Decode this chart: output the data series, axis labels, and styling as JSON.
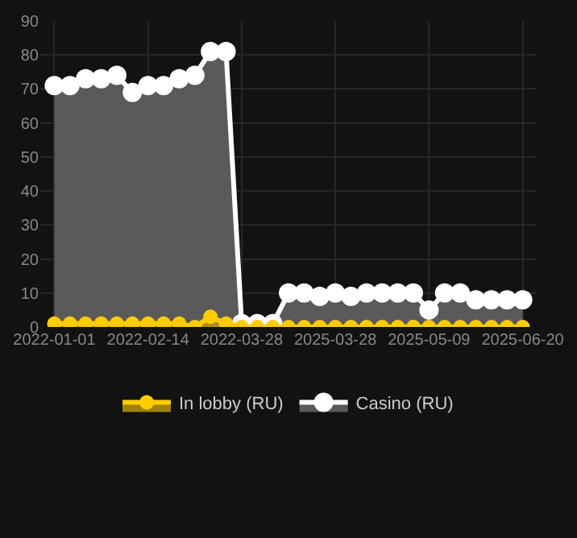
{
  "chart_data": {
    "type": "area",
    "categories": [
      "2022-01-01",
      null,
      null,
      null,
      null,
      null,
      "2022-02-14",
      null,
      null,
      null,
      null,
      null,
      "2022-03-28",
      null,
      null,
      null,
      null,
      null,
      "2025-03-28",
      null,
      null,
      null,
      null,
      null,
      "2025-05-09",
      null,
      null,
      null,
      null,
      null,
      "2025-06-20"
    ],
    "series": [
      {
        "name": "In lobby (RU)",
        "color": "#ffcc00",
        "values": [
          1,
          1,
          1,
          1,
          1,
          1,
          1,
          1,
          1,
          0,
          3,
          1,
          0,
          0,
          0,
          0,
          0,
          0,
          0,
          0,
          0,
          0,
          0,
          0,
          0,
          0,
          0,
          0,
          0,
          0,
          0
        ]
      },
      {
        "name": "Casino (RU)",
        "color": "#ffffff",
        "values": [
          71,
          71,
          73,
          73,
          74,
          69,
          71,
          71,
          73,
          74,
          81,
          81,
          1,
          1,
          1,
          10,
          10,
          9,
          10,
          9,
          10,
          10,
          10,
          10,
          5,
          10,
          10,
          8,
          8,
          8,
          8
        ]
      }
    ],
    "ylim": [
      0,
      90
    ],
    "yticks": [
      0,
      10,
      20,
      30,
      40,
      50,
      60,
      70,
      80,
      90
    ],
    "grid": true,
    "legend": "bottom",
    "marker": "circle",
    "line_style": "solid"
  }
}
